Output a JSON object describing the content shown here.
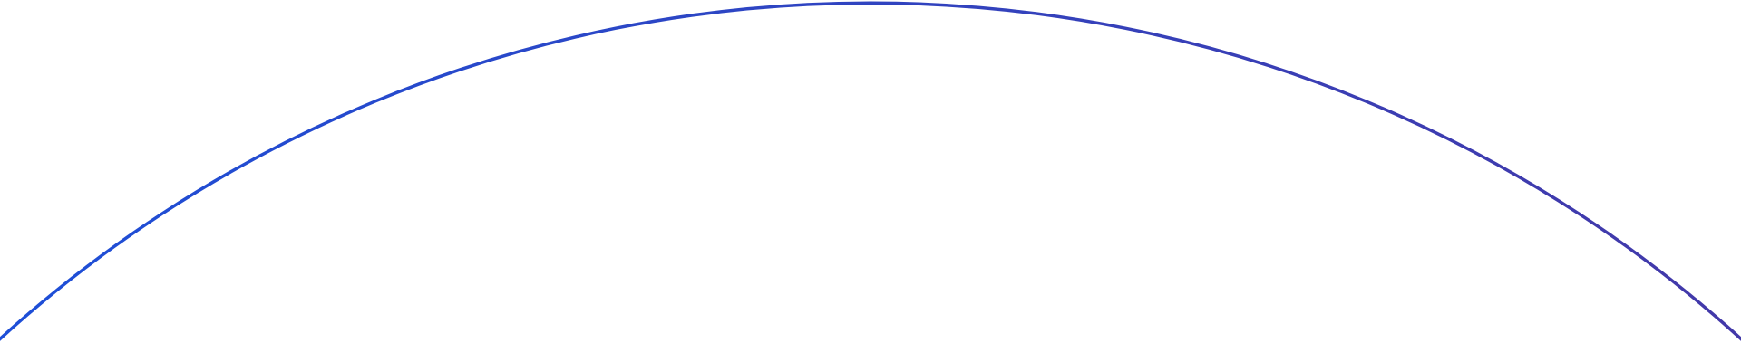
{
  "arc": {
    "stroke_start_color": "#1d4fd8",
    "stroke_end_color": "#4338a8"
  }
}
